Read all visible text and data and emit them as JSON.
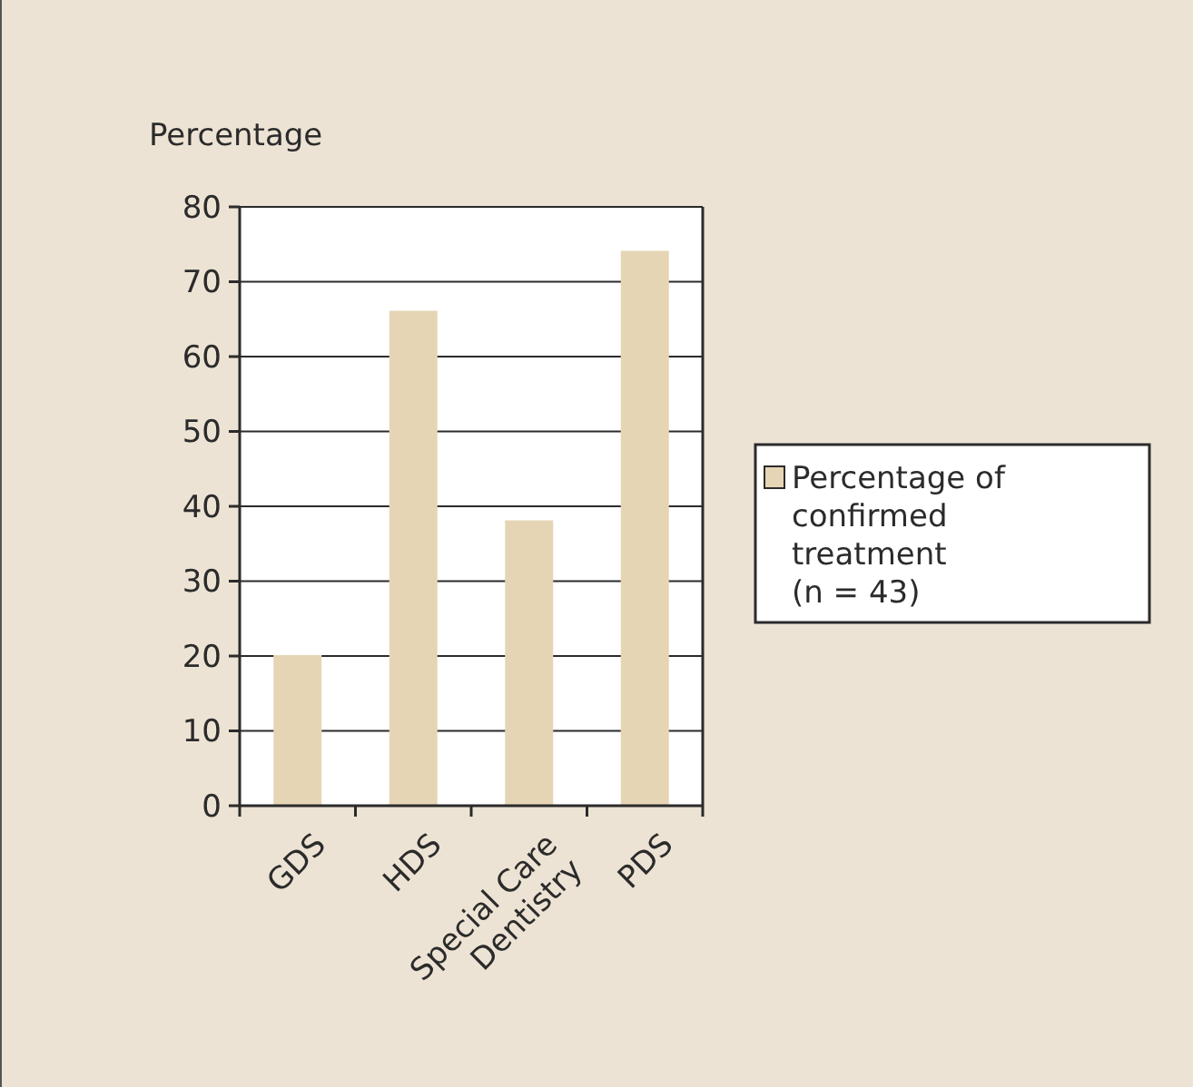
{
  "chart_data": {
    "type": "bar",
    "ylabel": "Percentage",
    "categories": [
      "GDS",
      "HDS",
      "Special Care Dentistry",
      "PDS"
    ],
    "series": [
      {
        "name": "Percentage of confirmed treatment (n = 43)",
        "color": "#e6d5b5",
        "values": [
          20,
          66,
          38,
          74
        ]
      }
    ],
    "ylim": [
      0,
      80
    ],
    "yticks": [
      0,
      10,
      20,
      30,
      40,
      50,
      60,
      70,
      80
    ],
    "grid": "y",
    "legend": "right"
  }
}
